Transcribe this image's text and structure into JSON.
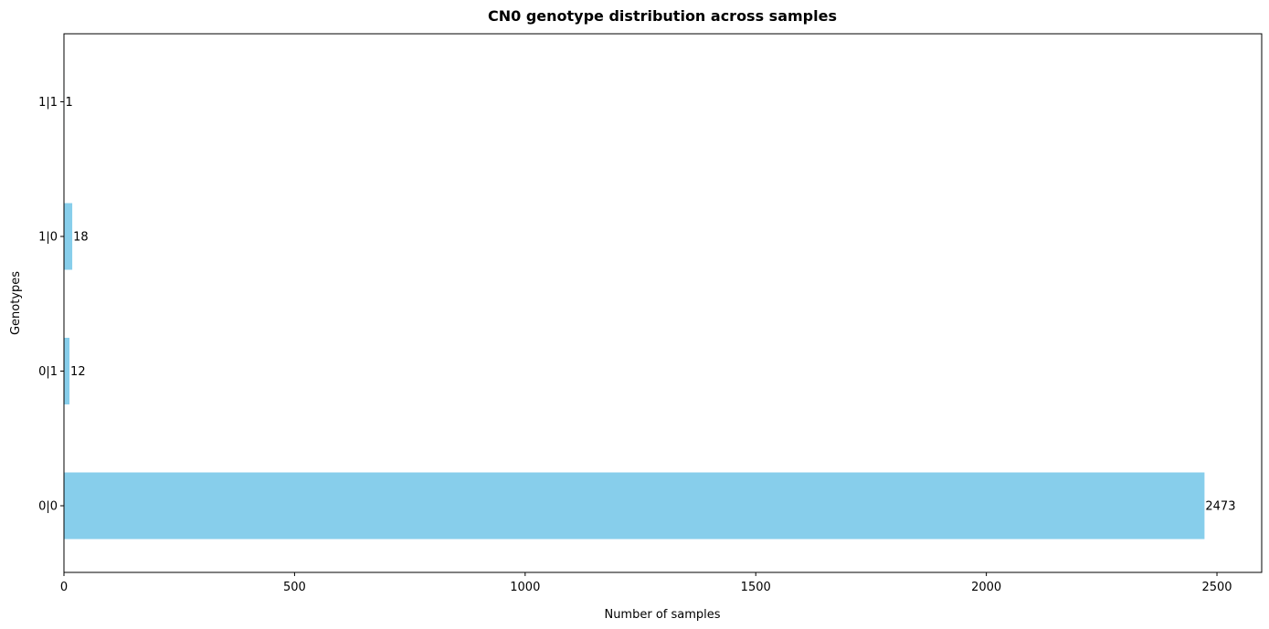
{
  "chart_data": {
    "type": "bar",
    "orientation": "horizontal",
    "title": "CN0 genotype distribution across samples",
    "xlabel": "Number of samples",
    "ylabel": "Genotypes",
    "categories": [
      "0|0",
      "0|1",
      "1|0",
      "1|1"
    ],
    "values": [
      2473,
      12,
      18,
      1
    ],
    "value_labels": [
      "2473",
      "12",
      "18",
      "1"
    ],
    "x_ticks": [
      0,
      500,
      1000,
      1500,
      2000,
      2500
    ],
    "x_tick_labels": [
      "0",
      "500",
      "1000",
      "1500",
      "2000",
      "2500"
    ],
    "xlim": [
      0,
      2597
    ],
    "grid": false,
    "bar_color": "#87ceeb"
  }
}
